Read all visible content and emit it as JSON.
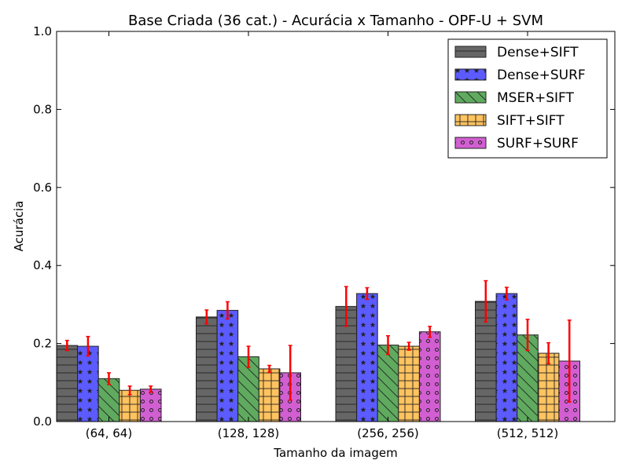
{
  "chart_data": {
    "type": "bar",
    "title": "Base Criada (36 cat.) - Acurácia x Tamanho - OPF-U + SVM",
    "xlabel": "Tamanho da imagem",
    "ylabel": "Acurácia",
    "ylim": [
      0,
      1.0
    ],
    "yticks": [
      "0.0",
      "0.2",
      "0.4",
      "0.6",
      "0.8",
      "1.0"
    ],
    "categories": [
      "(64, 64)",
      "(128, 128)",
      "(256, 256)",
      "(512, 512)"
    ],
    "legend_position": "top-right",
    "error_bar_color": "#ff0000",
    "series": [
      {
        "name": "Dense+SIFT",
        "color": "#666666",
        "hatch": "horizontal-lines",
        "values": [
          0.195,
          0.268,
          0.295,
          0.308
        ],
        "errors": [
          0.013,
          0.018,
          0.051,
          0.053
        ]
      },
      {
        "name": "Dense+SURF",
        "color": "#5b5bff",
        "hatch": "stars",
        "values": [
          0.193,
          0.285,
          0.328,
          0.328
        ],
        "errors": [
          0.025,
          0.022,
          0.015,
          0.016
        ]
      },
      {
        "name": "MSER+SIFT",
        "color": "#5faa5f",
        "hatch": "diagonal-lines",
        "values": [
          0.11,
          0.166,
          0.196,
          0.222
        ],
        "errors": [
          0.015,
          0.027,
          0.024,
          0.04
        ]
      },
      {
        "name": "SIFT+SIFT",
        "color": "#ffc35f",
        "hatch": "grid",
        "values": [
          0.08,
          0.135,
          0.193,
          0.175
        ],
        "errors": [
          0.011,
          0.009,
          0.01,
          0.027
        ]
      },
      {
        "name": "SURF+SURF",
        "color": "#d25fd2",
        "hatch": "circles",
        "values": [
          0.083,
          0.125,
          0.23,
          0.155
        ],
        "errors": [
          0.008,
          0.07,
          0.014,
          0.105
        ]
      }
    ]
  }
}
